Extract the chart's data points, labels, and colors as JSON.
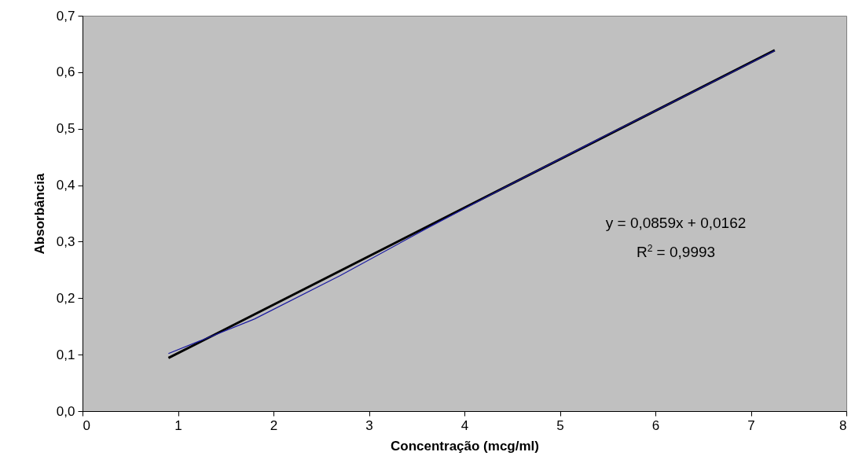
{
  "chart_data": {
    "type": "line",
    "xlabel": "Concentração (mcg/ml)",
    "ylabel": "Absorbância",
    "xlim": [
      0,
      8
    ],
    "xticks": [
      0,
      1,
      2,
      3,
      4,
      5,
      6,
      7,
      8
    ],
    "ylim": [
      0,
      0.7
    ],
    "yticks": [
      {
        "value": 0,
        "label": "0,0"
      },
      {
        "value": 0.1,
        "label": "0,1"
      },
      {
        "value": 0.2,
        "label": "0,2"
      },
      {
        "value": 0.3,
        "label": "0,3"
      },
      {
        "value": 0.4,
        "label": "0,4"
      },
      {
        "value": 0.5,
        "label": "0,5"
      },
      {
        "value": 0.6,
        "label": "0,6"
      },
      {
        "value": 0.7,
        "label": "0,7"
      }
    ],
    "x": [
      0.9,
      1.8,
      2.7,
      3.6,
      4.5,
      5.4,
      6.3,
      7.25
    ],
    "series": [
      {
        "color": "#1a1aa0",
        "values": [
          0.102,
          0.163,
          0.24,
          0.323,
          0.403,
          0.481,
          0.557,
          0.638
        ]
      },
      {
        "type": "line",
        "color": "#000000",
        "x": [
          0.9,
          7.25
        ],
        "values": [
          0.094,
          0.639
        ]
      }
    ],
    "annotations": [
      "y = 0,0859x + 0,0162",
      "R$^{2}$ = 0,9993"
    ],
    "grid": false,
    "marker": "none",
    "line_style": "solid"
  }
}
